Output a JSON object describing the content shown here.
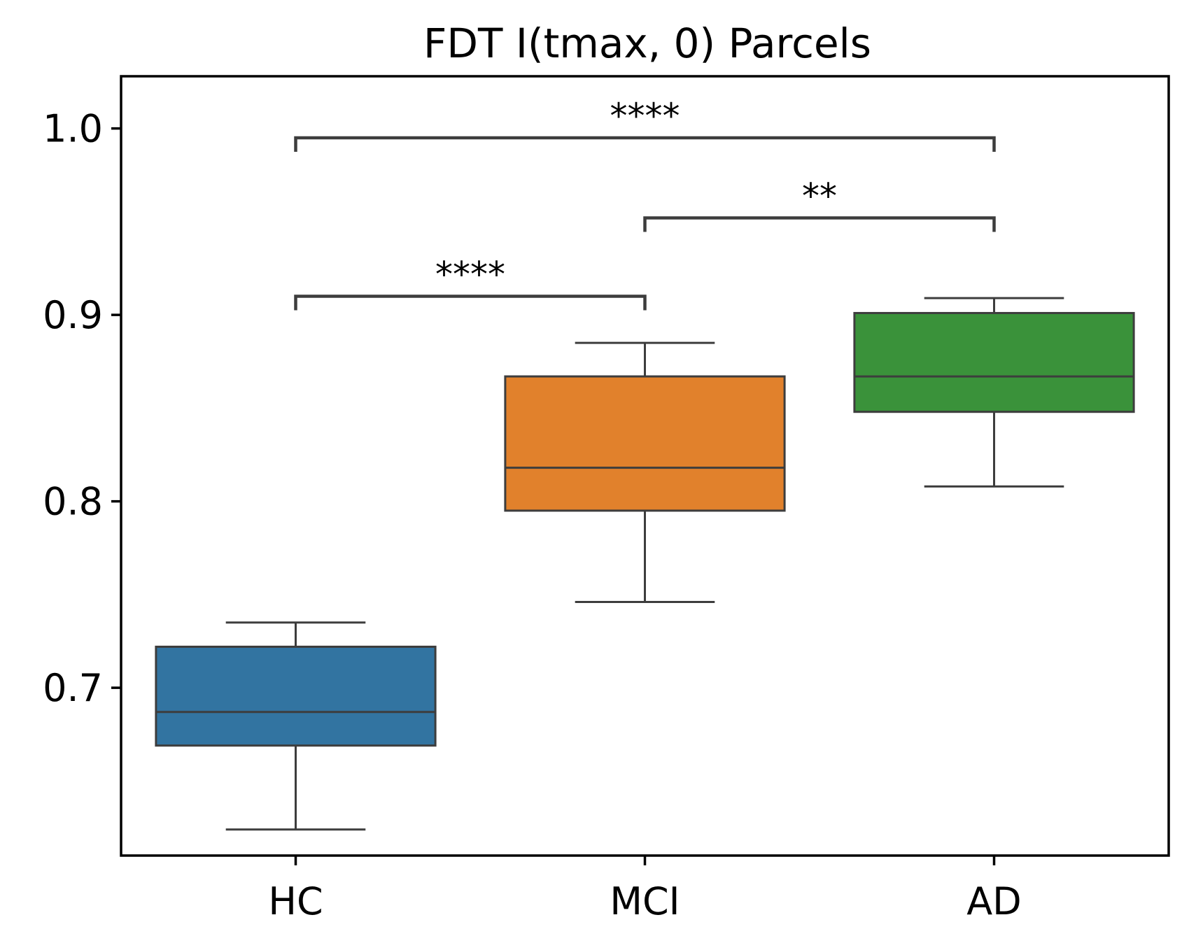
{
  "chart_data": {
    "type": "box",
    "title": "FDT I(tmax, 0) Parcels",
    "xlabel": "",
    "ylabel": "",
    "ylim": [
      0.61,
      1.028
    ],
    "yticks": [
      {
        "value": 0.7,
        "label": "0.7"
      },
      {
        "value": 0.8,
        "label": "0.8"
      },
      {
        "value": 0.9,
        "label": "0.9"
      },
      {
        "value": 1.0,
        "label": "1.0"
      }
    ],
    "categories": [
      "HC",
      "MCI",
      "AD"
    ],
    "boxes": [
      {
        "category": "HC",
        "whisker_low": 0.624,
        "q1": 0.669,
        "median": 0.687,
        "q3": 0.722,
        "whisker_high": 0.735,
        "color": "#3274a1"
      },
      {
        "category": "MCI",
        "whisker_low": 0.746,
        "q1": 0.795,
        "median": 0.818,
        "q3": 0.867,
        "whisker_high": 0.885,
        "color": "#e1812c"
      },
      {
        "category": "AD",
        "whisker_low": 0.808,
        "q1": 0.848,
        "median": 0.867,
        "q3": 0.901,
        "whisker_high": 0.909,
        "color": "#3a923a"
      }
    ],
    "annotations": [
      {
        "from": "HC",
        "to": "MCI",
        "y": 0.91,
        "label": "****"
      },
      {
        "from": "MCI",
        "to": "AD",
        "y": 0.952,
        "label": "**"
      },
      {
        "from": "HC",
        "to": "AD",
        "y": 0.995,
        "label": "****"
      }
    ],
    "grid": false,
    "line_color": "#3d3d3d"
  }
}
